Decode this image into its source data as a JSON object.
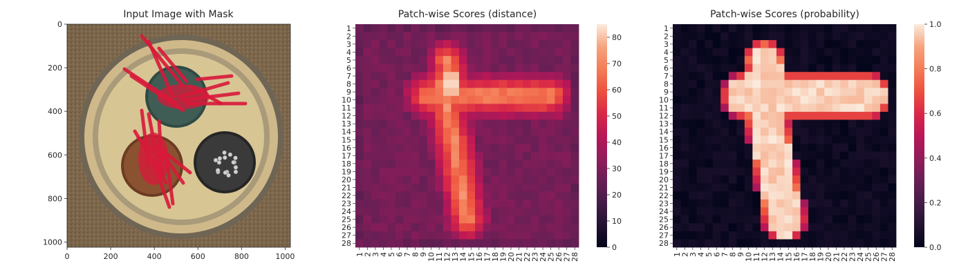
{
  "panels": [
    {
      "title": "Input Image with Mask",
      "type": "image",
      "xticks": [
        "0",
        "200",
        "400",
        "600",
        "800",
        "1000"
      ],
      "yticks": [
        "0",
        "200",
        "400",
        "600",
        "800",
        "1000"
      ],
      "xlim": [
        0,
        1024
      ],
      "ylim": [
        1024,
        0
      ]
    },
    {
      "title": "Patch-wise Scores (distance)",
      "type": "heatmap",
      "row_labels": [
        "1",
        "2",
        "3",
        "4",
        "5",
        "6",
        "7",
        "8",
        "9",
        "10",
        "11",
        "12",
        "13",
        "14",
        "15",
        "16",
        "17",
        "18",
        "19",
        "20",
        "21",
        "22",
        "23",
        "24",
        "25",
        "26",
        "27",
        "28"
      ],
      "col_labels": [
        "1",
        "2",
        "3",
        "4",
        "5",
        "6",
        "7",
        "8",
        "9",
        "10",
        "11",
        "12",
        "13",
        "14",
        "15",
        "16",
        "17",
        "18",
        "19",
        "20",
        "21",
        "22",
        "23",
        "24",
        "25",
        "26",
        "27",
        "28"
      ],
      "colorbar": {
        "min": 0,
        "max": 85,
        "ticks": [
          "0",
          "10",
          "20",
          "30",
          "40",
          "50",
          "60",
          "70",
          "80"
        ]
      }
    },
    {
      "title": "Patch-wise Scores (probability)",
      "type": "heatmap",
      "row_labels": [
        "1",
        "2",
        "3",
        "4",
        "5",
        "6",
        "7",
        "8",
        "9",
        "10",
        "11",
        "12",
        "13",
        "14",
        "15",
        "16",
        "17",
        "18",
        "19",
        "20",
        "21",
        "22",
        "23",
        "24",
        "25",
        "26",
        "27",
        "28"
      ],
      "col_labels": [
        "1",
        "2",
        "3",
        "4",
        "5",
        "6",
        "7",
        "8",
        "9",
        "10",
        "11",
        "12",
        "13",
        "14",
        "15",
        "16",
        "17",
        "18",
        "19",
        "20",
        "21",
        "22",
        "23",
        "24",
        "25",
        "26",
        "27",
        "28"
      ],
      "colorbar": {
        "min": 0,
        "max": 1,
        "ticks": [
          "0.0",
          "0.2",
          "0.4",
          "0.6",
          "0.8",
          "1.0"
        ]
      }
    }
  ],
  "chart_data": [
    {
      "type": "image",
      "title": "Input Image with Mask",
      "xlim": [
        0,
        1024
      ],
      "ylim": [
        1024,
        0
      ]
    },
    {
      "type": "heatmap",
      "title": "Patch-wise Scores (distance)",
      "rows": 28,
      "cols": 28,
      "value_range": [
        0,
        85
      ],
      "peak_rows": [
        7,
        8
      ],
      "peak_cols": [
        12,
        13
      ],
      "peak_value": 84
    },
    {
      "type": "heatmap",
      "title": "Patch-wise Scores (probability)",
      "rows": 28,
      "cols": 28,
      "value_range": [
        0,
        1
      ],
      "high_region": "T-shaped region covering rows 5-26"
    }
  ],
  "colors": {
    "rocket_low": "#03051a",
    "rocket_high": "#faebdd",
    "mask_red": "#d8193a"
  }
}
